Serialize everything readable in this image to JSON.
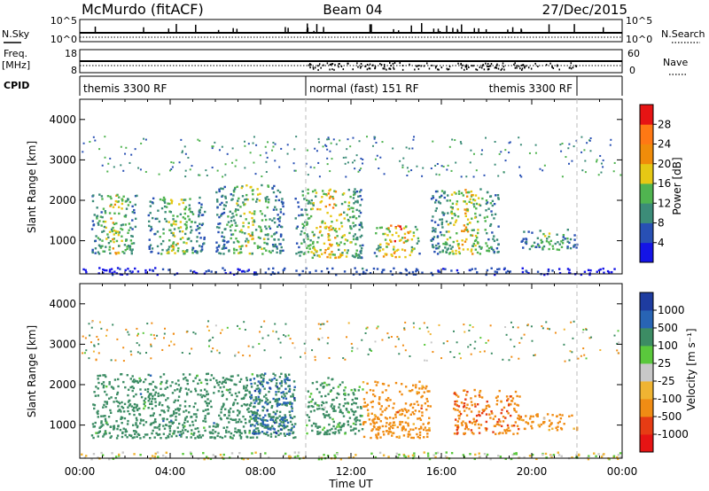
{
  "header": {
    "station": "McMurdo (fitACF)",
    "beam": "Beam 04",
    "date": "27/Dec/2015"
  },
  "top_panels": {
    "nsky_label": "N.Sky",
    "nsky_ticks": [
      "10^5",
      "10^0"
    ],
    "nsearch_label": "N.Search",
    "nsearch_ticks": [
      "10^5",
      "10^0"
    ],
    "freq_label": "Freq.",
    "freq_unit": "[MHz]",
    "freq_ticks": [
      "18",
      "8"
    ],
    "nave_label": "Nave",
    "nave_ticks": [
      "60",
      "0"
    ],
    "cpid_label": "CPID",
    "cpid_segments": [
      {
        "label": "themis 3300 RF",
        "start_hour": 0,
        "end_hour": 10
      },
      {
        "label": "normal (fast) 151 RF",
        "start_hour": 10,
        "end_hour": 22
      },
      {
        "label": "themis 3300 RF",
        "start_hour": 22,
        "end_hour": 24
      }
    ],
    "cpid_segment_labels": [
      "themis 3300 RF",
      "normal (fast) 151 RF",
      "themis 3300 RF"
    ]
  },
  "axes": {
    "ylabel": "Slant Range [km]",
    "xlabel": "Time UT",
    "y_ticks": [
      "1000",
      "2000",
      "3000",
      "4000"
    ],
    "x_ticks": [
      "00:00",
      "04:00",
      "08:00",
      "12:00",
      "16:00",
      "20:00",
      "00:00"
    ]
  },
  "power_scale": {
    "label": "Power [dB]",
    "ticks": [
      "4",
      "8",
      "12",
      "16",
      "20",
      "24",
      "28"
    ],
    "colors": [
      "#1414e6",
      "#2850b4",
      "#3c8c78",
      "#50b450",
      "#e6c814",
      "#f08c0a",
      "#ff7814",
      "#e61414"
    ]
  },
  "velocity_scale": {
    "label": "Velocity [m s⁻¹]",
    "ticks": [
      "1000",
      "500",
      "100",
      "25",
      "-25",
      "-100",
      "-500",
      "-1000"
    ],
    "colors": [
      "#1e3ca0",
      "#2864b4",
      "#3c8c64",
      "#5ac83c",
      "#c8c8c8",
      "#f0b432",
      "#f08c14",
      "#e63c14",
      "#e61414"
    ]
  },
  "chart_data": [
    {
      "type": "heatmap",
      "title": "Power",
      "xlabel": "Time UT",
      "ylabel": "Slant Range [km]",
      "xlim_hours": [
        0,
        24
      ],
      "ylim_km": [
        180,
        4500
      ],
      "colorbar": {
        "label": "Power [dB]",
        "range": [
          0,
          30
        ]
      },
      "features": [
        {
          "time_hours": [
            0.5,
            2.5
          ],
          "range_km": [
            700,
            2200
          ],
          "peak_db": 22
        },
        {
          "time_hours": [
            3.0,
            5.5
          ],
          "range_km": [
            700,
            2100
          ],
          "peak_db": 20
        },
        {
          "time_hours": [
            6.0,
            9.0
          ],
          "range_km": [
            700,
            2400
          ],
          "peak_db": 20
        },
        {
          "time_hours": [
            9.5,
            12.5
          ],
          "range_km": [
            600,
            2300
          ],
          "peak_db": 24
        },
        {
          "time_hours": [
            13.0,
            15.0
          ],
          "range_km": [
            600,
            1400
          ],
          "peak_db": 30
        },
        {
          "time_hours": [
            15.5,
            18.5
          ],
          "range_km": [
            700,
            2300
          ],
          "peak_db": 22
        },
        {
          "time_hours": [
            19.5,
            22.0
          ],
          "range_km": [
            800,
            1300
          ],
          "peak_db": 18
        },
        {
          "time_hours": [
            0.0,
            24.0
          ],
          "range_km": [
            180,
            350
          ],
          "peak_db": 8
        }
      ]
    },
    {
      "type": "heatmap",
      "title": "Velocity",
      "xlabel": "Time UT",
      "ylabel": "Slant Range [km]",
      "xlim_hours": [
        0,
        24
      ],
      "ylim_km": [
        180,
        4500
      ],
      "colorbar": {
        "label": "Velocity [m s-1]",
        "range": [
          -1000,
          1000
        ]
      },
      "features": [
        {
          "time_hours": [
            0.5,
            9.5
          ],
          "range_km": [
            700,
            2300
          ],
          "typical_velocity": 300
        },
        {
          "time_hours": [
            7.5,
            9.5
          ],
          "range_km": [
            800,
            2200
          ],
          "typical_velocity": 700
        },
        {
          "time_hours": [
            10.0,
            12.5
          ],
          "range_km": [
            800,
            2200
          ],
          "typical_velocity": 200
        },
        {
          "time_hours": [
            12.5,
            15.5
          ],
          "range_km": [
            700,
            2100
          ],
          "typical_velocity": -300
        },
        {
          "time_hours": [
            16.5,
            19.5
          ],
          "range_km": [
            800,
            1900
          ],
          "typical_velocity": -400
        },
        {
          "time_hours": [
            19.5,
            22.0
          ],
          "range_km": [
            900,
            1300
          ],
          "typical_velocity": -200
        },
        {
          "time_hours": [
            0.0,
            24.0
          ],
          "range_km": [
            180,
            350
          ],
          "typical_velocity": 0
        }
      ]
    }
  ]
}
